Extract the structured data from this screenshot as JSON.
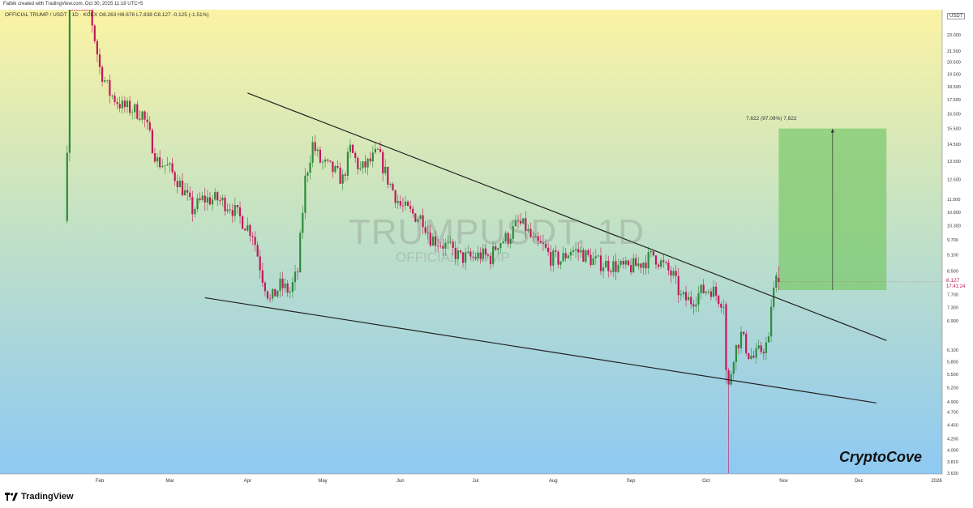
{
  "header": {
    "created_by": "Fatbik created with TradingView.com, Oct 30, 2025 11:18 UTC+5",
    "legend": "OFFICIAL TRUMP / USDT · 1D · KCEX  O8.263  H8.678  L7.838  C8.127  -0.125 (-1.51%)",
    "unit": "USDT"
  },
  "watermark": {
    "symbol": "TRUMPUSDT, 1D",
    "name": "OFFICIAL TRUMP"
  },
  "brand": "CryptoCove",
  "footer": {
    "logo": "TradingView"
  },
  "measure": {
    "label": "7.622 (97.09%) 7,622"
  },
  "last_price": {
    "value": "8.127",
    "countdown": "17:41:24"
  },
  "colors": {
    "up": "#2e8b3a",
    "down": "#c2185b",
    "target_box": "#7ec96f",
    "bg_top": "#fbf3a4",
    "bg_bottom": "#8ec9f3",
    "trendline": "#222222"
  },
  "chart_data": {
    "type": "candlestick",
    "title": "",
    "x_ticks": [
      "Feb",
      "Mar",
      "Apr",
      "May",
      "Jun",
      "Jul",
      "Aug",
      "Sep",
      "Oct",
      "Nov",
      "Dec",
      "2026"
    ],
    "y_ticks": [
      "23.000",
      "21.500",
      "20.500",
      "19.500",
      "18.500",
      "17.500",
      "16.500",
      "15.500",
      "14.500",
      "13.500",
      "12.500",
      "11.500",
      "10.900",
      "10.300",
      "9.700",
      "9.100",
      "8.500",
      "7.700",
      "7.300",
      "6.900",
      "6.100",
      "5.800",
      "5.500",
      "5.200",
      "4.900",
      "4.700",
      "4.450",
      "4.200",
      "4.000",
      "3.810",
      "3.630"
    ],
    "scale": "log",
    "price_path": [
      [
        "2025-01-18",
        14.0
      ],
      [
        "2025-01-19",
        50.0
      ],
      [
        "2025-01-21",
        40.0
      ],
      [
        "2025-01-24",
        33.0
      ],
      [
        "2025-02-01",
        20.0
      ],
      [
        "2025-02-05",
        18.0
      ],
      [
        "2025-02-10",
        17.0
      ],
      [
        "2025-02-14",
        16.8
      ],
      [
        "2025-02-18",
        16.5
      ],
      [
        "2025-02-20",
        15.5
      ],
      [
        "2025-02-24",
        13.5
      ],
      [
        "2025-02-28",
        13.2
      ],
      [
        "2025-03-04",
        12.5
      ],
      [
        "2025-03-07",
        11.8
      ],
      [
        "2025-03-10",
        11.0
      ],
      [
        "2025-03-14",
        11.5
      ],
      [
        "2025-03-20",
        11.5
      ],
      [
        "2025-03-25",
        11.2
      ],
      [
        "2025-03-30",
        10.5
      ],
      [
        "2025-04-03",
        10.0
      ],
      [
        "2025-04-07",
        8.3
      ],
      [
        "2025-04-10",
        7.5
      ],
      [
        "2025-04-14",
        8.0
      ],
      [
        "2025-04-18",
        7.8
      ],
      [
        "2025-04-21",
        8.5
      ],
      [
        "2025-04-24",
        12.5
      ],
      [
        "2025-04-27",
        14.5
      ],
      [
        "2025-04-30",
        13.5
      ],
      [
        "2025-05-05",
        13.0
      ],
      [
        "2025-05-09",
        12.5
      ],
      [
        "2025-05-12",
        14.2
      ],
      [
        "2025-05-16",
        13.0
      ],
      [
        "2025-05-20",
        13.5
      ],
      [
        "2025-05-23",
        14.0
      ],
      [
        "2025-05-27",
        12.5
      ],
      [
        "2025-06-01",
        11.2
      ],
      [
        "2025-06-06",
        10.8
      ],
      [
        "2025-06-10",
        10.6
      ],
      [
        "2025-06-13",
        9.8
      ],
      [
        "2025-06-20",
        9.4
      ],
      [
        "2025-06-25",
        9.0
      ],
      [
        "2025-06-30",
        9.0
      ],
      [
        "2025-07-03",
        9.1
      ],
      [
        "2025-07-07",
        9.0
      ],
      [
        "2025-07-10",
        9.6
      ],
      [
        "2025-07-14",
        9.8
      ],
      [
        "2025-07-18",
        10.4
      ],
      [
        "2025-07-21",
        10.2
      ],
      [
        "2025-07-24",
        9.6
      ],
      [
        "2025-07-28",
        9.4
      ],
      [
        "2025-07-31",
        9.0
      ],
      [
        "2025-08-04",
        8.9
      ],
      [
        "2025-08-08",
        9.3
      ],
      [
        "2025-08-12",
        9.2
      ],
      [
        "2025-08-15",
        9.0
      ],
      [
        "2025-08-19",
        8.8
      ],
      [
        "2025-08-25",
        8.7
      ],
      [
        "2025-08-30",
        8.6
      ],
      [
        "2025-09-03",
        8.7
      ],
      [
        "2025-09-07",
        8.9
      ],
      [
        "2025-09-10",
        9.1
      ],
      [
        "2025-09-14",
        8.7
      ],
      [
        "2025-09-18",
        8.3
      ],
      [
        "2025-09-21",
        7.6
      ],
      [
        "2025-09-25",
        7.5
      ],
      [
        "2025-09-29",
        7.8
      ],
      [
        "2025-10-03",
        7.9
      ],
      [
        "2025-10-06",
        7.6
      ],
      [
        "2025-10-09",
        7.4
      ],
      [
        "2025-10-10",
        5.2
      ],
      [
        "2025-10-12",
        6.0
      ],
      [
        "2025-10-15",
        6.5
      ],
      [
        "2025-10-18",
        6.0
      ],
      [
        "2025-10-20",
        5.9
      ],
      [
        "2025-10-23",
        6.1
      ],
      [
        "2025-10-26",
        6.3
      ],
      [
        "2025-10-27",
        7.4
      ],
      [
        "2025-10-28",
        7.8
      ],
      [
        "2025-10-29",
        8.2
      ],
      [
        "2025-10-30",
        8.127
      ]
    ],
    "trendlines": {
      "upper": [
        [
          "2025-04-01",
          18.0
        ],
        [
          "2025-12-12",
          6.35
        ]
      ],
      "lower": [
        [
          "2025-03-15",
          7.6
        ],
        [
          "2025-12-08",
          4.88
        ]
      ]
    },
    "target_box": {
      "from_date": "2025-10-30",
      "to_date": "2025-12-12",
      "bottom": 7.85,
      "top": 15.5
    },
    "last_price": 8.127
  }
}
